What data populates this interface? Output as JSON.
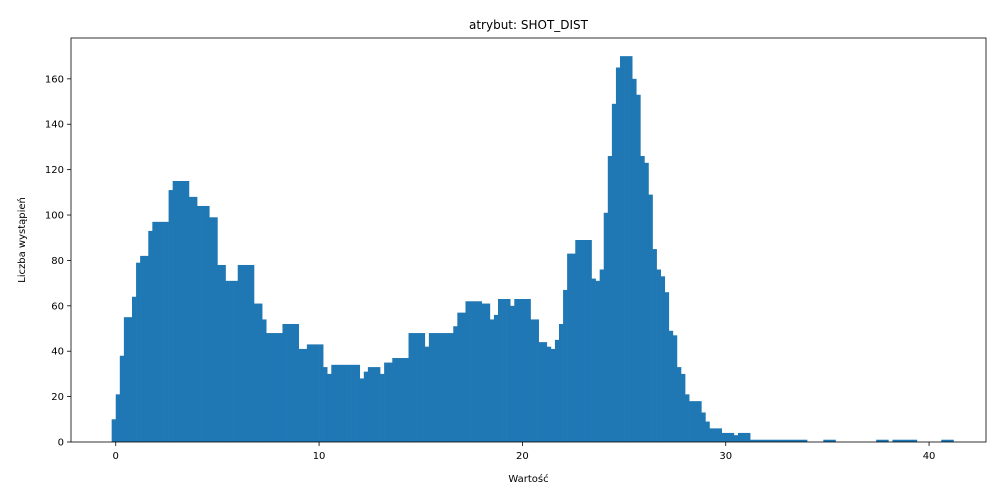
{
  "chart_data": {
    "type": "bar",
    "title": "atrybut: SHOT_DIST",
    "xlabel": "Wartość",
    "ylabel": "Liczba wystąpień",
    "xlim": [
      -2.2,
      42.8
    ],
    "ylim": [
      0,
      178
    ],
    "xticks": [
      0,
      10,
      20,
      30,
      40
    ],
    "yticks": [
      0,
      20,
      40,
      60,
      80,
      100,
      120,
      140,
      160
    ],
    "grid": false,
    "bar_color": "#1f77b4",
    "bar_width": 0.2,
    "series": [
      {
        "values": [
          [
            -0.2,
            10
          ],
          [
            0.0,
            21
          ],
          [
            0.2,
            38
          ],
          [
            0.4,
            55
          ],
          [
            0.6,
            55
          ],
          [
            0.8,
            64
          ],
          [
            1.0,
            79
          ],
          [
            1.2,
            82
          ],
          [
            1.4,
            82
          ],
          [
            1.6,
            93
          ],
          [
            1.8,
            97
          ],
          [
            2.0,
            97
          ],
          [
            2.2,
            97
          ],
          [
            2.4,
            97
          ],
          [
            2.6,
            111
          ],
          [
            2.8,
            115
          ],
          [
            3.0,
            115
          ],
          [
            3.2,
            115
          ],
          [
            3.4,
            115
          ],
          [
            3.6,
            108
          ],
          [
            3.8,
            108
          ],
          [
            4.0,
            104
          ],
          [
            4.2,
            104
          ],
          [
            4.4,
            104
          ],
          [
            4.6,
            99
          ],
          [
            4.8,
            99
          ],
          [
            5.0,
            78
          ],
          [
            5.2,
            78
          ],
          [
            5.4,
            71
          ],
          [
            5.6,
            71
          ],
          [
            5.8,
            71
          ],
          [
            6.0,
            78
          ],
          [
            6.2,
            78
          ],
          [
            6.4,
            78
          ],
          [
            6.6,
            78
          ],
          [
            6.8,
            61
          ],
          [
            7.0,
            61
          ],
          [
            7.2,
            54
          ],
          [
            7.4,
            48
          ],
          [
            7.6,
            48
          ],
          [
            7.8,
            48
          ],
          [
            8.0,
            48
          ],
          [
            8.2,
            52
          ],
          [
            8.4,
            52
          ],
          [
            8.6,
            52
          ],
          [
            8.8,
            52
          ],
          [
            9.0,
            41
          ],
          [
            9.2,
            41
          ],
          [
            9.4,
            43
          ],
          [
            9.6,
            43
          ],
          [
            9.8,
            43
          ],
          [
            10.0,
            43
          ],
          [
            10.2,
            33
          ],
          [
            10.4,
            30
          ],
          [
            10.6,
            34
          ],
          [
            10.8,
            34
          ],
          [
            11.0,
            34
          ],
          [
            11.2,
            34
          ],
          [
            11.4,
            34
          ],
          [
            11.6,
            34
          ],
          [
            11.8,
            34
          ],
          [
            12.0,
            28
          ],
          [
            12.2,
            31
          ],
          [
            12.4,
            33
          ],
          [
            12.6,
            33
          ],
          [
            12.8,
            33
          ],
          [
            13.0,
            30
          ],
          [
            13.2,
            35
          ],
          [
            13.4,
            35
          ],
          [
            13.6,
            37
          ],
          [
            13.8,
            37
          ],
          [
            14.0,
            37
          ],
          [
            14.2,
            37
          ],
          [
            14.4,
            48
          ],
          [
            14.6,
            48
          ],
          [
            14.8,
            48
          ],
          [
            15.0,
            48
          ],
          [
            15.2,
            42
          ],
          [
            15.4,
            48
          ],
          [
            15.6,
            48
          ],
          [
            15.8,
            48
          ],
          [
            16.0,
            48
          ],
          [
            16.2,
            48
          ],
          [
            16.4,
            48
          ],
          [
            16.6,
            51
          ],
          [
            16.8,
            57
          ],
          [
            17.0,
            57
          ],
          [
            17.2,
            62
          ],
          [
            17.4,
            62
          ],
          [
            17.6,
            62
          ],
          [
            17.8,
            62
          ],
          [
            18.0,
            61
          ],
          [
            18.2,
            61
          ],
          [
            18.4,
            54
          ],
          [
            18.6,
            56
          ],
          [
            18.8,
            63
          ],
          [
            19.0,
            63
          ],
          [
            19.2,
            63
          ],
          [
            19.4,
            60
          ],
          [
            19.6,
            63
          ],
          [
            19.8,
            63
          ],
          [
            20.0,
            63
          ],
          [
            20.2,
            63
          ],
          [
            20.4,
            54
          ],
          [
            20.6,
            54
          ],
          [
            20.8,
            44
          ],
          [
            21.0,
            44
          ],
          [
            21.2,
            42
          ],
          [
            21.4,
            41
          ],
          [
            21.6,
            45
          ],
          [
            21.8,
            52
          ],
          [
            22.0,
            67
          ],
          [
            22.2,
            83
          ],
          [
            22.4,
            83
          ],
          [
            22.6,
            89
          ],
          [
            22.8,
            89
          ],
          [
            23.0,
            89
          ],
          [
            23.2,
            89
          ],
          [
            23.4,
            72
          ],
          [
            23.6,
            71
          ],
          [
            23.8,
            76
          ],
          [
            24.0,
            101
          ],
          [
            24.2,
            126
          ],
          [
            24.4,
            149
          ],
          [
            24.6,
            165
          ],
          [
            24.8,
            170
          ],
          [
            25.0,
            170
          ],
          [
            25.2,
            170
          ],
          [
            25.4,
            160
          ],
          [
            25.6,
            153
          ],
          [
            25.8,
            126
          ],
          [
            26.0,
            123
          ],
          [
            26.2,
            109
          ],
          [
            26.4,
            85
          ],
          [
            26.6,
            76
          ],
          [
            26.8,
            73
          ],
          [
            27.0,
            66
          ],
          [
            27.2,
            49
          ],
          [
            27.4,
            47
          ],
          [
            27.6,
            33
          ],
          [
            27.8,
            30
          ],
          [
            28.0,
            21
          ],
          [
            28.2,
            18
          ],
          [
            28.4,
            18
          ],
          [
            28.6,
            18
          ],
          [
            28.8,
            13
          ],
          [
            29.0,
            9
          ],
          [
            29.2,
            6
          ],
          [
            29.4,
            6
          ],
          [
            29.6,
            6
          ],
          [
            29.8,
            4
          ],
          [
            30.0,
            4
          ],
          [
            30.2,
            4
          ],
          [
            30.4,
            3
          ],
          [
            30.6,
            4
          ],
          [
            30.8,
            4
          ],
          [
            31.0,
            4
          ],
          [
            31.2,
            1
          ],
          [
            31.4,
            1
          ],
          [
            31.6,
            1
          ],
          [
            31.8,
            1
          ],
          [
            32.0,
            1
          ],
          [
            32.2,
            1
          ],
          [
            32.4,
            1
          ],
          [
            32.6,
            1
          ],
          [
            32.8,
            1
          ],
          [
            33.0,
            1
          ],
          [
            33.2,
            1
          ],
          [
            33.4,
            1
          ],
          [
            33.6,
            1
          ],
          [
            33.8,
            1
          ],
          [
            34.8,
            1
          ],
          [
            35.0,
            1
          ],
          [
            35.2,
            1
          ],
          [
            37.4,
            1
          ],
          [
            37.6,
            1
          ],
          [
            37.8,
            1
          ],
          [
            38.2,
            1
          ],
          [
            38.4,
            1
          ],
          [
            38.6,
            1
          ],
          [
            38.8,
            1
          ],
          [
            39.0,
            1
          ],
          [
            39.2,
            1
          ],
          [
            40.6,
            1
          ],
          [
            40.8,
            1
          ],
          [
            41.0,
            1
          ]
        ]
      }
    ]
  }
}
